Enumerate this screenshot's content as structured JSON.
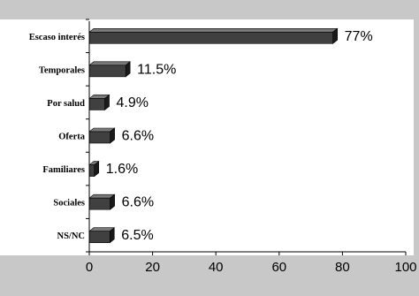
{
  "colors": {
    "outer_background": "#c8c8c8",
    "plot_background": "#ffffff",
    "bar_front": "#404040",
    "bar_top": "#7a7a7a",
    "bar_side": "#1a1a1a",
    "axis": "#000000"
  },
  "chart_data": {
    "type": "bar",
    "orientation": "horizontal",
    "three_d": true,
    "categories": [
      "Escaso interés",
      "Temporales",
      "Por salud",
      "Oferta",
      "Familiares",
      "Sociales",
      "NS/NC"
    ],
    "values": [
      77,
      11.5,
      4.9,
      6.6,
      1.6,
      6.6,
      6.5
    ],
    "value_labels": [
      "77%",
      "11.5%",
      "4.9%",
      "6.6%",
      "1.6%",
      "6.6%",
      "6.5%"
    ],
    "xlim": [
      0,
      100
    ],
    "xticks": [
      "0",
      "20",
      "40",
      "60",
      "80",
      "100"
    ],
    "title": "",
    "xlabel": "",
    "ylabel": "",
    "grid": false,
    "legend": "none"
  }
}
